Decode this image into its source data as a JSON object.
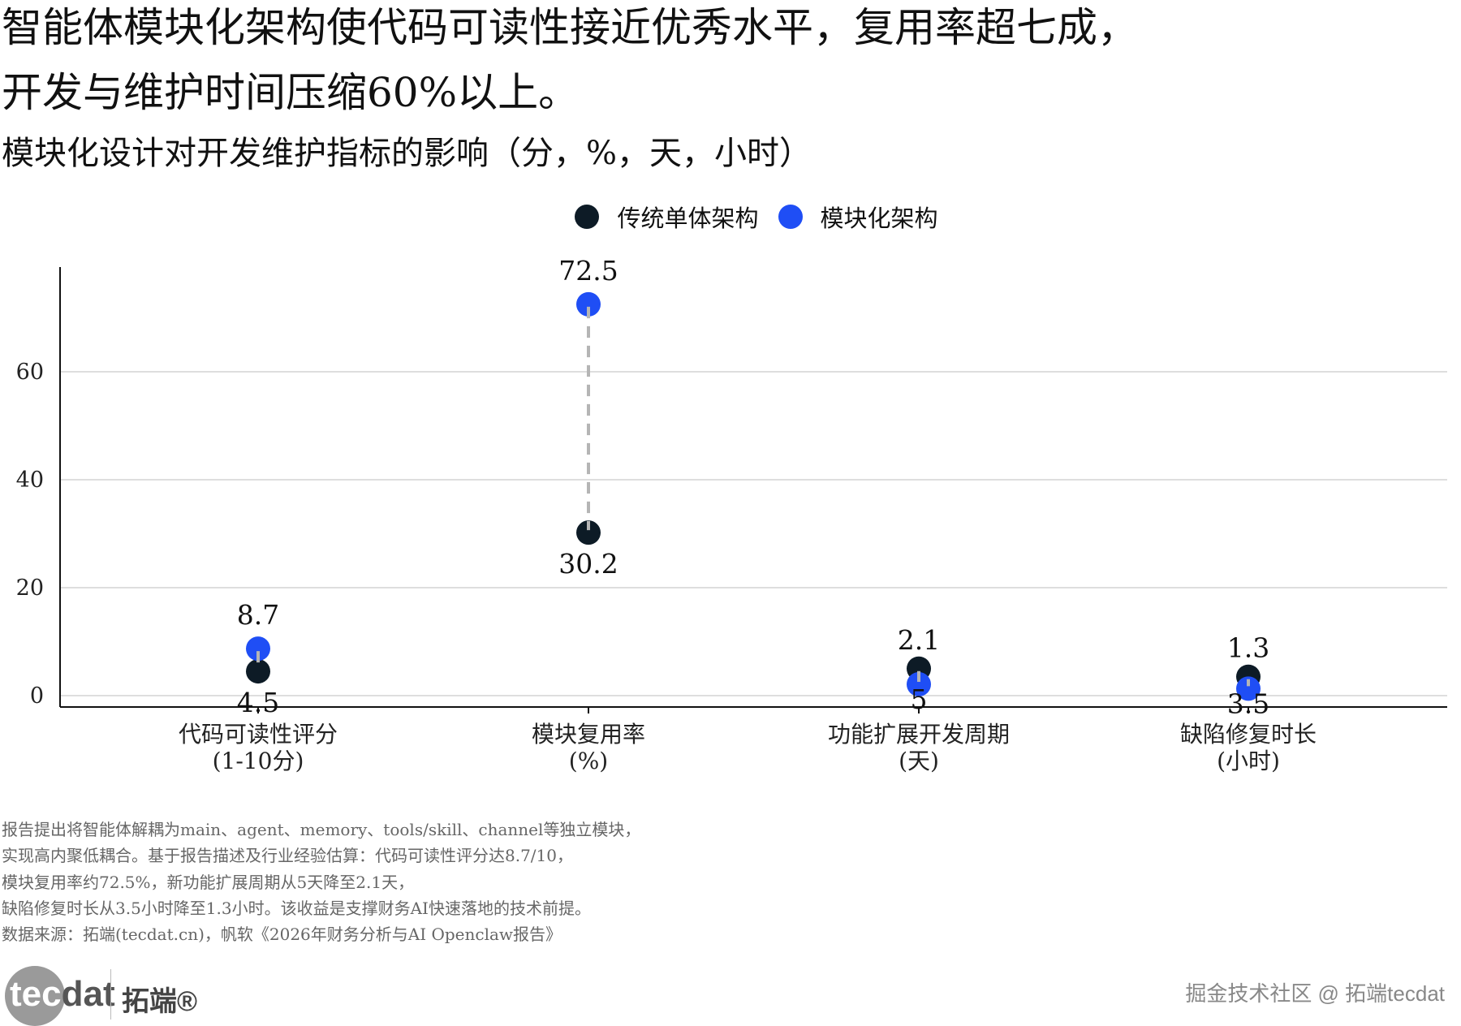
{
  "title_lines": [
    "智能体模块化架构使代码可读性接近优秀水平，复用率超七成，",
    "开发与维护时间压缩60%以上。"
  ],
  "subtitle": "模块化设计对开发维护指标的影响（分，%，天，小时）",
  "chart_data": {
    "type": "dumbbell",
    "title": "模块化设计对开发维护指标的影响（分，%，天，小时）",
    "categories": [
      [
        "代码可读性评分",
        "(1-10分)"
      ],
      [
        "模块复用率",
        "(%)"
      ],
      [
        "功能扩展开发周期",
        "(天)"
      ],
      [
        "缺陷修复时长",
        "(小时)"
      ]
    ],
    "series": [
      {
        "name": "传统单体架构",
        "color": "#0d1b26",
        "values": [
          4.5,
          30.2,
          5,
          3.5
        ],
        "labels": [
          "4.5",
          "30.2",
          "5",
          "3.5"
        ]
      },
      {
        "name": "模块化架构",
        "color": "#1f4ef5",
        "values": [
          8.7,
          72.5,
          2.1,
          1.3
        ],
        "labels": [
          "8.7",
          "72.5",
          "2.1",
          "1.3"
        ]
      }
    ],
    "yticks": [
      0,
      20,
      40,
      60
    ],
    "ylim": [
      -2,
      80
    ],
    "grid": true,
    "legend_position": "top-center",
    "xlabel": "",
    "ylabel": ""
  },
  "footnotes": [
    "报告提出将智能体解耦为main、agent、memory、tools/skill、channel等独立模块，",
    "实现高内聚低耦合。基于报告描述及行业经验估算：代码可读性评分达8.7/10，",
    "模块复用率约72.5%，新功能扩展周期从5天降至2.1天，",
    "缺陷修复时长从3.5小时降至1.3小时。该收益是支撑财务AI快速落地的技术前提。",
    "数据来源：拓端(tecdat.cn)，帆软《2026年财务分析与AI Openclaw报告》"
  ],
  "logo": {
    "word_a": "tec",
    "word_b": "dat",
    "cn": "拓端®"
  },
  "watermark": "掘金技术社区 @ 拓端tecdat"
}
